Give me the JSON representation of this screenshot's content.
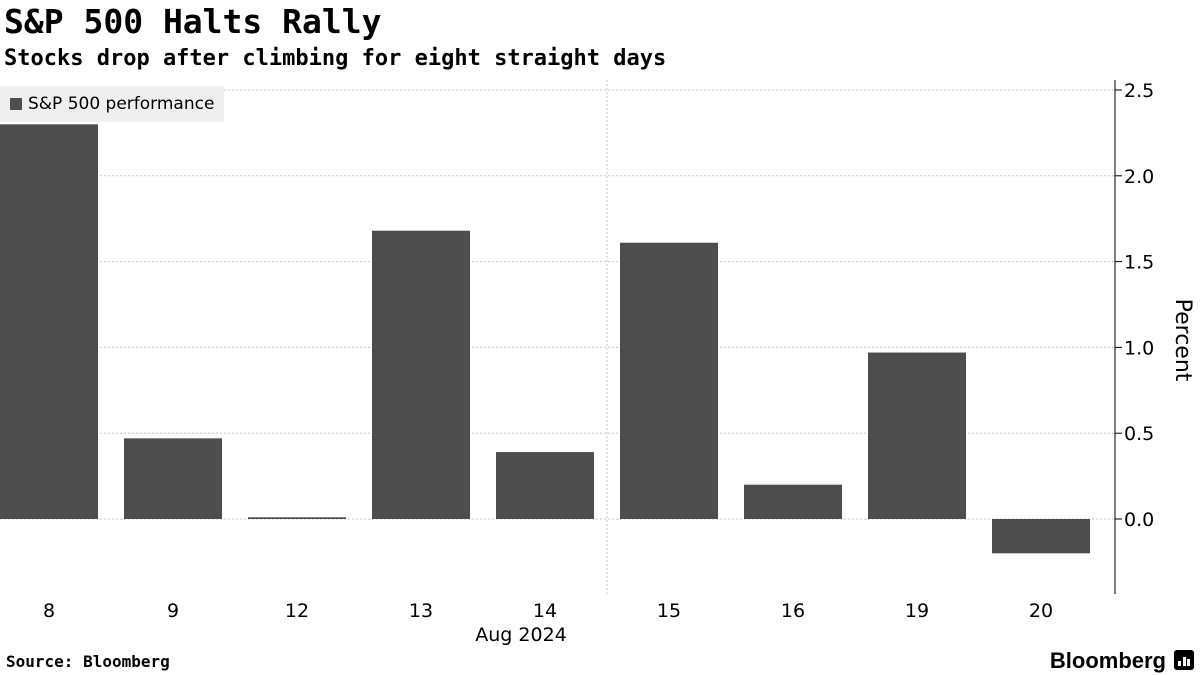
{
  "header": {
    "title": "S&P 500 Halts Rally",
    "subtitle": "Stocks drop after climbing for eight straight days"
  },
  "legend": {
    "label": "S&P 500 performance"
  },
  "footer": {
    "source": "Source: Bloomberg",
    "brand": "Bloomberg",
    "brand_icon": "bloomberg-terminal-icon"
  },
  "colors": {
    "bar": "#4d4d4d",
    "grid": "#c8c8c8",
    "axis": "#000000"
  },
  "chart_data": {
    "type": "bar",
    "categories": [
      "8",
      "9",
      "12",
      "13",
      "14",
      "15",
      "16",
      "19",
      "20"
    ],
    "x_group_label": "Aug 2024",
    "series": [
      {
        "name": "S&P 500 performance",
        "values": [
          2.3,
          0.47,
          0.01,
          1.68,
          0.39,
          1.61,
          0.2,
          0.97,
          -0.2
        ]
      }
    ],
    "ylabel": "Percent",
    "yticks": [
      0.0,
      0.5,
      1.0,
      1.5,
      2.0,
      2.5
    ],
    "ytick_labels": [
      "0.0",
      "0.5",
      "1.0",
      "1.5",
      "2.0",
      "2.5"
    ],
    "ylim": [
      -0.42,
      2.55
    ],
    "grid": true,
    "y_axis_position": "right",
    "legend_position": "top-left"
  }
}
